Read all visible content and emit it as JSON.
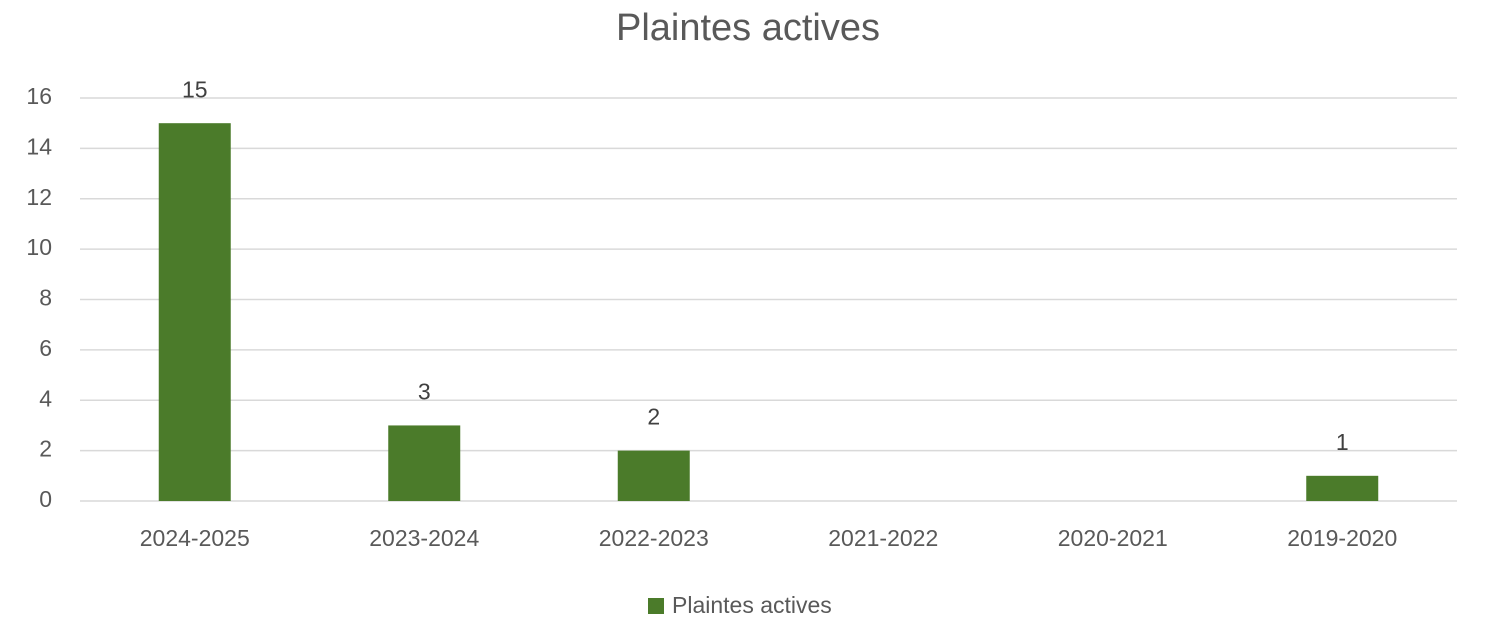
{
  "chart_data": {
    "type": "bar",
    "title": "Plaintes actives",
    "categories": [
      "2024-2025",
      "2023-2024",
      "2022-2023",
      "2021-2022",
      "2020-2021",
      "2019-2020"
    ],
    "series": [
      {
        "name": "Plaintes actives",
        "color": "#4b7b2a",
        "values": [
          15,
          3,
          2,
          null,
          null,
          1
        ]
      }
    ],
    "ylim": [
      0,
      16
    ],
    "yticks": [
      0,
      2,
      4,
      6,
      8,
      10,
      12,
      14,
      16
    ],
    "grid": true,
    "legend": "bottom"
  }
}
